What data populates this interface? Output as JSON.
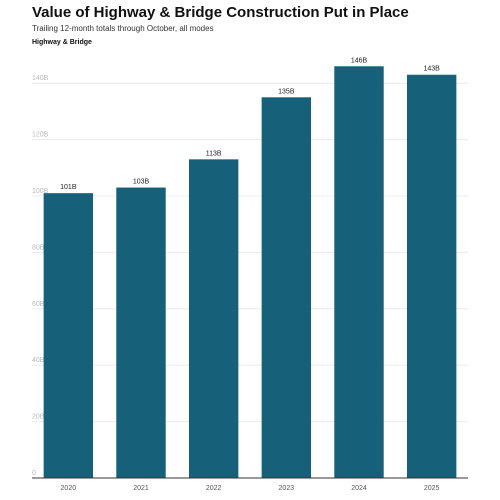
{
  "chart_data": {
    "type": "bar",
    "title": "Value of Highway & Bridge Construction Put in Place",
    "subtitle": "Trailing 12-month totals through October, all modes",
    "xlabel": "",
    "ylabel": "",
    "categories": [
      "2020",
      "2021",
      "2022",
      "2023",
      "2024",
      "2025"
    ],
    "series": [
      {
        "name": "Highway & Bridge",
        "values": [
          101,
          103,
          113,
          135,
          146,
          143
        ],
        "labels": [
          "101B",
          "103B",
          "113B",
          "135B",
          "146B",
          "143B"
        ]
      }
    ],
    "ylim": [
      0,
      150
    ],
    "yticks": [
      0,
      20,
      40,
      60,
      80,
      100,
      120,
      140
    ],
    "ytick_labels": [
      "0",
      "20B",
      "40B",
      "60B",
      "80B",
      "100B",
      "120B",
      "140B"
    ],
    "grid": true,
    "bar_color": "#17607a",
    "gridline_color": "#ececec",
    "axis_color": "#333333"
  }
}
